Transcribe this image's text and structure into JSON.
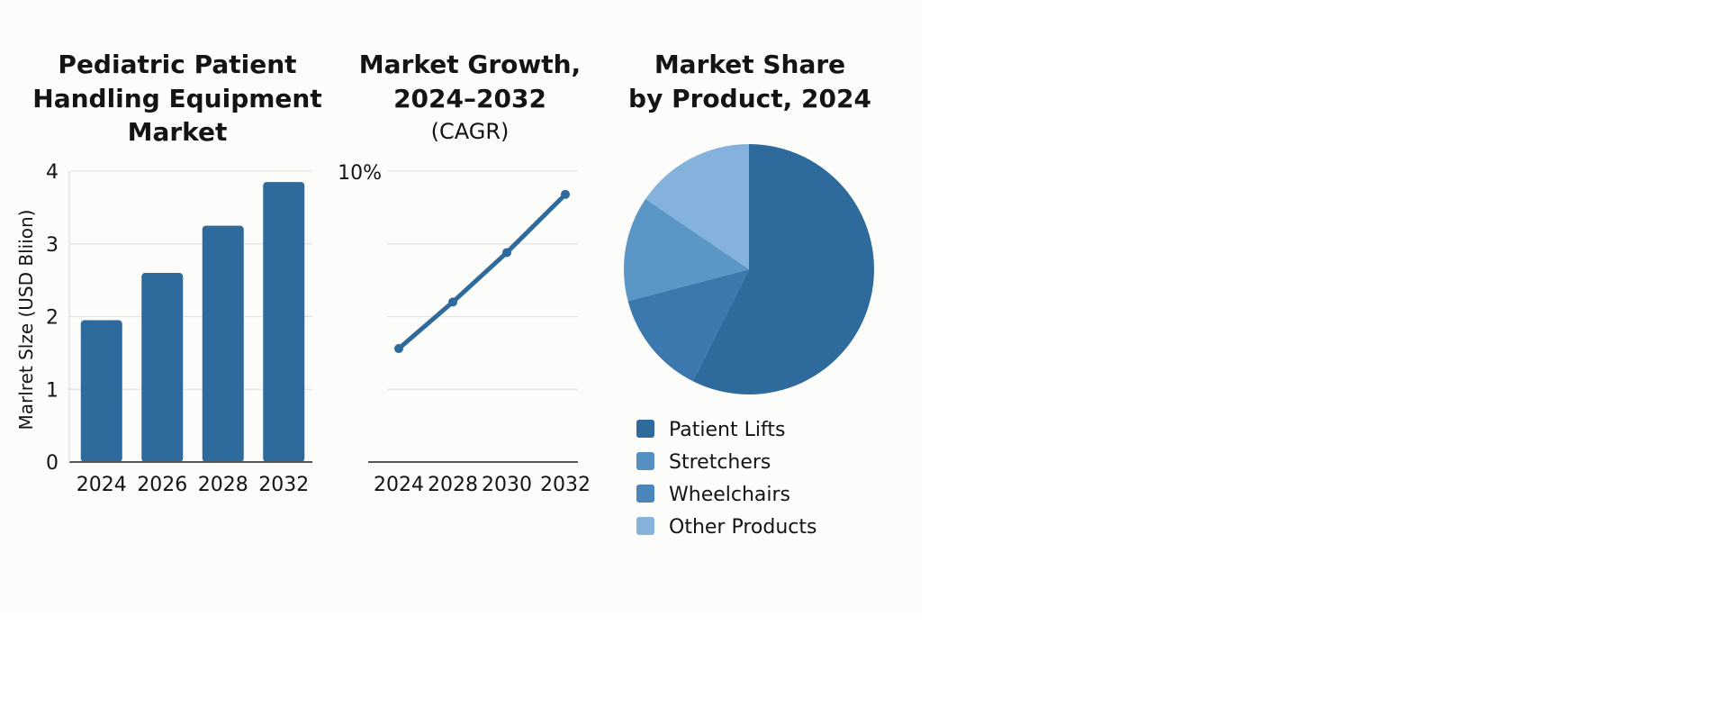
{
  "chart_data": [
    {
      "type": "bar",
      "title": [
        "Pediatric Patient",
        "Handling Equipment",
        "Market"
      ],
      "xlabel": "",
      "ylabel": "Marlret Slze (USD Bliion)",
      "categories": [
        "2024",
        "2026",
        "2028",
        "2032"
      ],
      "values": [
        1.95,
        2.6,
        3.25,
        3.85
      ],
      "ylim": [
        0,
        4
      ],
      "yticks": [
        "0",
        "1",
        "2",
        "3",
        "4"
      ],
      "grid": true,
      "color": "#2e6a9b"
    },
    {
      "type": "line",
      "title": [
        "Market Growth,",
        "2024–2032",
        "(CAGR)"
      ],
      "xlabel": "",
      "ylabel": "",
      "categories": [
        "2024",
        "2028",
        "2030",
        "2032"
      ],
      "values": [
        3.9,
        5.5,
        7.2,
        9.2
      ],
      "unit": "%",
      "ylim": [
        0,
        10
      ],
      "ytick_labels": [
        "10%"
      ],
      "grid": true,
      "color": "#2e6a9b"
    },
    {
      "type": "pie",
      "title": [
        "Market Share",
        "by Product, 2024"
      ],
      "slices": [
        {
          "label": "Patient Lifts",
          "value": 57.4,
          "color": "#2e6a9b",
          "legend_color": "#2e6a9b"
        },
        {
          "label": "Wheelchairs",
          "value": 13.5,
          "color": "#3b78ad",
          "legend_color": "#4a86bb"
        },
        {
          "label": "Stretchers",
          "value": 13.6,
          "color": "#5a96c6",
          "legend_color": "#5590c2"
        },
        {
          "label": "Other Products",
          "value": 15.5,
          "color": "#84b2dc",
          "legend_color": "#86b3dc"
        }
      ],
      "legend": [
        "Patient Lifts",
        "Stretchers",
        "Wheelchairs",
        "Other Products"
      ],
      "legend_placement": "bottom"
    }
  ]
}
